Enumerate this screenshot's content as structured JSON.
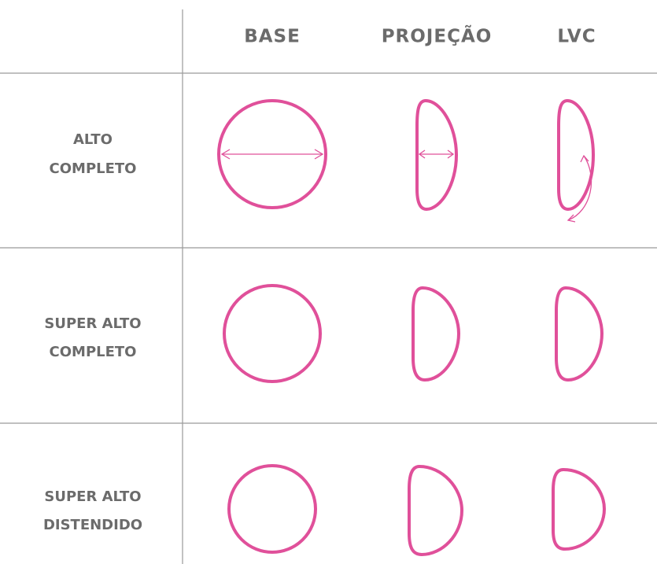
{
  "header": {
    "columns": [
      "BASE",
      "PROJEÇÃO",
      "LVC"
    ]
  },
  "rows": [
    {
      "label": [
        "ALTO",
        "COMPLETO"
      ]
    },
    {
      "label": [
        "SUPER ALTO",
        "COMPLETO"
      ]
    },
    {
      "label": [
        "SUPER ALTO",
        "DISTENDIDO"
      ]
    }
  ]
}
